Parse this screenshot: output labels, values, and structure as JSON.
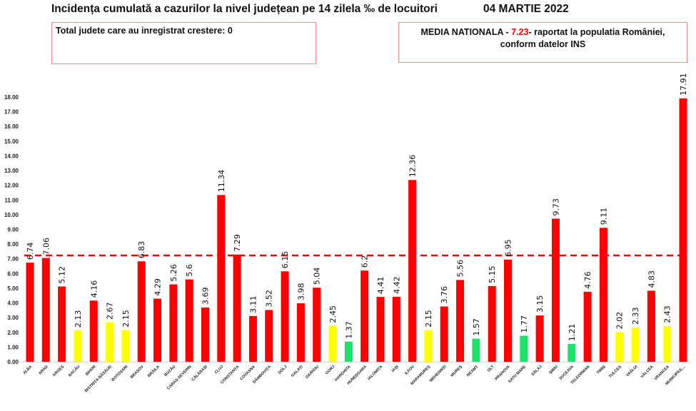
{
  "header": {
    "title": "Incidența cumulată a cazurilor la nivel județean pe 14 zilela ‰ de locuitori",
    "date": "04 MARTIE 2022"
  },
  "info_left": {
    "text": "Total judete care au inregistrat crestere: 0"
  },
  "info_right": {
    "prefix": "MEDIA NATIONALA - ",
    "value": "7.23",
    "suffix": "-  raportat la populatia României,",
    "line2": "conform datelor INS"
  },
  "colors": {
    "red": "#ff0000",
    "yellow": "#ffff00",
    "green": "#1be36a",
    "average_line": "#ff0000"
  },
  "chart_data": {
    "type": "bar",
    "title": "Incidența cumulată a cazurilor la nivel județean pe 14 zilela ‰ de locuitori",
    "xlabel": "",
    "ylabel": "",
    "ylim": [
      0,
      18
    ],
    "yticks": [
      "0.00",
      "1.00",
      "2.00",
      "3.00",
      "4.00",
      "5.00",
      "6.00",
      "7.00",
      "8.00",
      "9.00",
      "10.00",
      "11.00",
      "12.00",
      "13.00",
      "14.00",
      "15.00",
      "16.00",
      "17.00",
      "18.00"
    ],
    "grid": false,
    "average_line": 7.23,
    "categories": [
      "ALBA",
      "ARAD",
      "ARGEȘ",
      "BACĂU",
      "BIHOR",
      "BISTRIȚA-NĂSĂUD",
      "BOTOȘANI",
      "BRAȘOV",
      "BRĂILA",
      "BUZĂU",
      "CARAȘ-SEVERIN",
      "CĂLĂRAȘI",
      "CLUJ",
      "CONSTANȚA",
      "COVASNA",
      "DÂMBOVIȚA",
      "DOLJ",
      "GALAȚI",
      "GIURGIU",
      "GORJ",
      "HARGHITA",
      "HUNEDOARA",
      "IALOMIȚA",
      "IAȘI",
      "ILFOV",
      "MARAMUREȘ",
      "MEHEDINȚI",
      "MUREȘ",
      "NEAMȚ",
      "OLT",
      "PRAHOVA",
      "SATU MARE",
      "SĂLAJ",
      "SIBIU",
      "SUCEAVA",
      "TELEORMAN",
      "TIMIȘ",
      "TULCEA",
      "VASLUI",
      "VÂLCEA",
      "VRANCEA",
      "MUNICIPIUL..."
    ],
    "values": [
      6.74,
      7.06,
      5.12,
      2.13,
      4.16,
      2.67,
      2.15,
      6.83,
      4.29,
      5.26,
      5.6,
      3.69,
      11.34,
      7.29,
      3.11,
      3.52,
      6.15,
      3.98,
      5.04,
      2.45,
      1.37,
      6.2,
      4.41,
      4.42,
      12.36,
      2.15,
      3.76,
      5.56,
      1.57,
      5.15,
      6.95,
      1.77,
      3.15,
      9.73,
      1.21,
      4.76,
      9.11,
      2.02,
      2.33,
      4.83,
      2.43,
      17.91
    ],
    "value_labels": [
      "6.74",
      "7.06",
      "5.12",
      "2.13",
      "4.16",
      "2.67",
      "2.15",
      "6.83",
      "4.29",
      "5.26",
      "5.6",
      "3.69",
      "11.34",
      "7.29",
      "3.11",
      "3.52",
      "6.15",
      "3.98",
      "5.04",
      "2.45",
      "1.37",
      "6.2",
      "4.41",
      "4.42",
      "12.36",
      "2.15",
      "3.76",
      "5.56",
      "1.57",
      "5.15",
      "6.95",
      "1.77",
      "3.15",
      "9.73",
      "1.21",
      "4.76",
      "9.11",
      "2.02",
      "2.33",
      "4.83",
      "2.43",
      "17.91"
    ],
    "bar_colors": [
      "red",
      "red",
      "red",
      "yellow",
      "red",
      "yellow",
      "yellow",
      "red",
      "red",
      "red",
      "red",
      "red",
      "red",
      "red",
      "red",
      "red",
      "red",
      "red",
      "red",
      "yellow",
      "green",
      "red",
      "red",
      "red",
      "red",
      "yellow",
      "red",
      "red",
      "green",
      "red",
      "red",
      "green",
      "red",
      "red",
      "green",
      "red",
      "red",
      "yellow",
      "yellow",
      "red",
      "yellow",
      "red"
    ]
  }
}
